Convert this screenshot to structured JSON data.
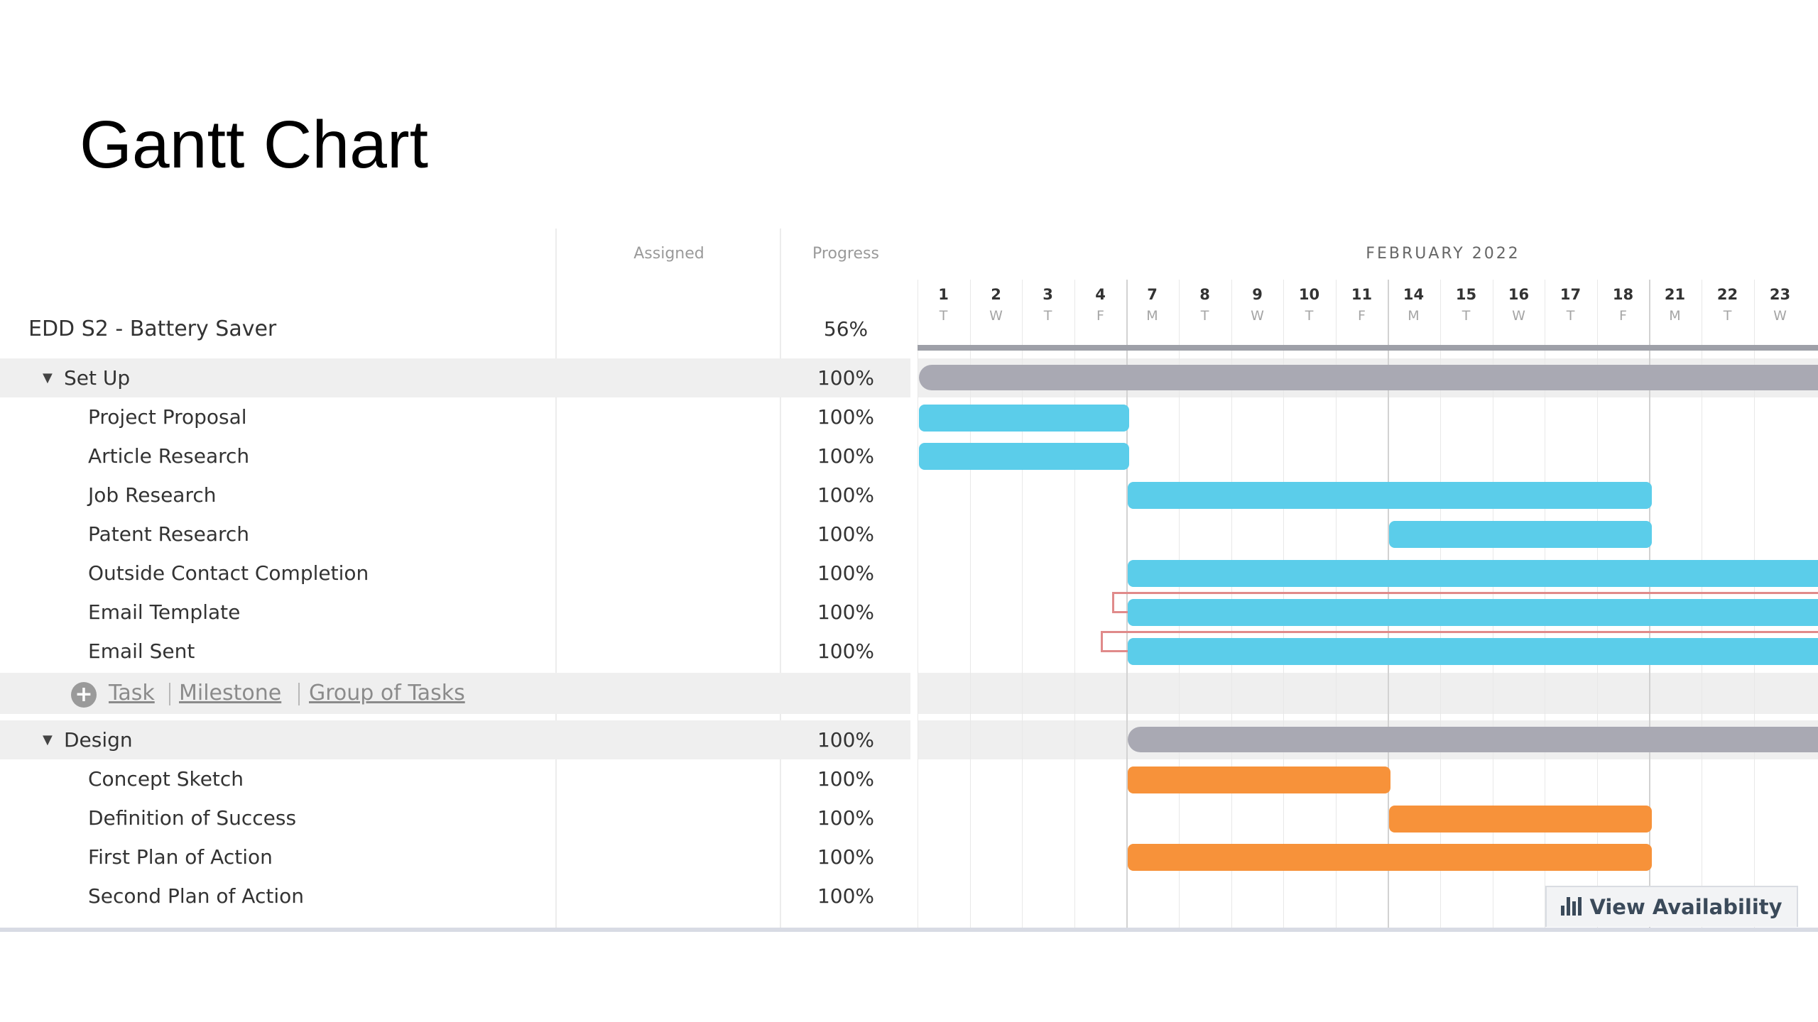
{
  "slide_title": "Gantt Chart",
  "columns": {
    "assigned": "Assigned",
    "progress": "Progress"
  },
  "project": {
    "name": "EDD S2 - Battery Saver",
    "progress": "56%"
  },
  "groups": [
    {
      "name": "Set Up",
      "progress": "100%",
      "tasks": [
        {
          "name": "Project Proposal",
          "progress": "100%"
        },
        {
          "name": "Article Research",
          "progress": "100%"
        },
        {
          "name": "Job Research",
          "progress": "100%"
        },
        {
          "name": "Patent Research",
          "progress": "100%"
        },
        {
          "name": "Outside Contact Completion",
          "progress": "100%"
        },
        {
          "name": "Email Template",
          "progress": "100%"
        },
        {
          "name": "Email Sent",
          "progress": "100%"
        }
      ]
    },
    {
      "name": "Design",
      "progress": "100%",
      "tasks": [
        {
          "name": "Concept Sketch",
          "progress": "100%"
        },
        {
          "name": "Definition of Success",
          "progress": "100%"
        },
        {
          "name": "First Plan of Action",
          "progress": "100%"
        },
        {
          "name": "Second Plan of Action",
          "progress": "100%"
        }
      ]
    }
  ],
  "add_links": {
    "task": "Task",
    "milestone": "Milestone",
    "group": "Group of Tasks"
  },
  "timeline": {
    "month": "FEBRUARY 2022",
    "days": [
      {
        "num": "1",
        "wd": "T"
      },
      {
        "num": "2",
        "wd": "W"
      },
      {
        "num": "3",
        "wd": "T"
      },
      {
        "num": "4",
        "wd": "F"
      },
      {
        "num": "7",
        "wd": "M"
      },
      {
        "num": "8",
        "wd": "T"
      },
      {
        "num": "9",
        "wd": "W"
      },
      {
        "num": "10",
        "wd": "T"
      },
      {
        "num": "11",
        "wd": "F"
      },
      {
        "num": "14",
        "wd": "M"
      },
      {
        "num": "15",
        "wd": "T"
      },
      {
        "num": "16",
        "wd": "W"
      },
      {
        "num": "17",
        "wd": "T"
      },
      {
        "num": "18",
        "wd": "F"
      },
      {
        "num": "21",
        "wd": "M"
      },
      {
        "num": "22",
        "wd": "T"
      },
      {
        "num": "23",
        "wd": "W"
      }
    ]
  },
  "view_availability": "View Availability",
  "colors": {
    "task_bar_setup": "#5bcdea",
    "task_bar_design": "#f7923a",
    "group_bar": "#a9a9b3",
    "dependency": "#e08a8a"
  }
}
